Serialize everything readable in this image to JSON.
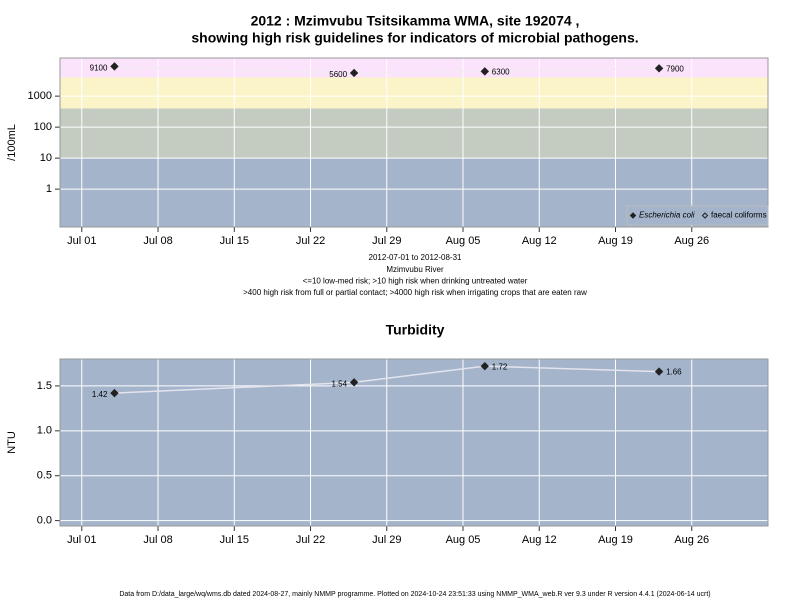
{
  "chart_data": [
    {
      "type": "line",
      "title": "2012 : Mzimvubu Tsitsikamma WMA, site 192074 ,",
      "subtitle": "showing high risk guidelines for indicators of microbial pathogens.",
      "ylabel": "/100mL",
      "annotations": [
        "2012-07-01 to 2012-08-31",
        "Mzimvubu River",
        "<=10 low-med risk; >10 high risk when drinking untreated water",
        ">400 high risk from full or partial contact; >4000 high risk when irrigating crops that are eaten raw"
      ],
      "x": [
        "2012-07-04",
        "2012-07-26",
        "2012-08-07",
        "2012-08-23"
      ],
      "series": [
        {
          "name": "Escherichia coli",
          "color": "#f4e8f4",
          "marker": "filled",
          "values": [
            9100,
            5600,
            6300,
            7900
          ]
        },
        {
          "name": "faecal coliforms",
          "color": "#f4e8f4",
          "marker": "open",
          "values": [
            null,
            null,
            null,
            null
          ]
        }
      ],
      "xlim": [
        "2012-06-29",
        "2012-09-02"
      ],
      "xticks": [
        {
          "value": "2012-07-01",
          "label": "Jul 01"
        },
        {
          "value": "2012-07-08",
          "label": "Jul 08"
        },
        {
          "value": "2012-07-15",
          "label": "Jul 15"
        },
        {
          "value": "2012-07-22",
          "label": "Jul 22"
        },
        {
          "value": "2012-07-29",
          "label": "Jul 29"
        },
        {
          "value": "2012-08-05",
          "label": "Aug 05"
        },
        {
          "value": "2012-08-12",
          "label": "Aug 12"
        },
        {
          "value": "2012-08-19",
          "label": "Aug 19"
        },
        {
          "value": "2012-08-26",
          "label": "Aug 26"
        }
      ],
      "ylim": [
        0.06,
        17000
      ],
      "yticks": [
        1,
        10,
        100,
        1000
      ],
      "log_scale": true,
      "grid": true,
      "background": "#a3b4cb",
      "band_breaks": [
        10,
        400,
        4000
      ],
      "band_colors": [
        "#a3b4cb",
        "#c4cbc0",
        "#fbf4c8",
        "#fbe3fb"
      ],
      "legend": "bottom-right"
    },
    {
      "type": "line",
      "title": "Turbidity",
      "ylabel": "NTU",
      "x": [
        "2012-07-04",
        "2012-07-26",
        "2012-08-07",
        "2012-08-23"
      ],
      "series": [
        {
          "name": "Turbidity",
          "color": "#e4e4ee",
          "marker": "filled",
          "values": [
            1.42,
            1.54,
            1.72,
            1.66
          ]
        }
      ],
      "xlim": [
        "2012-06-29",
        "2012-09-02"
      ],
      "xticks": [
        {
          "value": "2012-07-01",
          "label": "Jul 01"
        },
        {
          "value": "2012-07-08",
          "label": "Jul 08"
        },
        {
          "value": "2012-07-15",
          "label": "Jul 15"
        },
        {
          "value": "2012-07-22",
          "label": "Jul 22"
        },
        {
          "value": "2012-07-29",
          "label": "Jul 29"
        },
        {
          "value": "2012-08-05",
          "label": "Aug 05"
        },
        {
          "value": "2012-08-12",
          "label": "Aug 12"
        },
        {
          "value": "2012-08-19",
          "label": "Aug 19"
        },
        {
          "value": "2012-08-26",
          "label": "Aug 26"
        }
      ],
      "ylim": [
        -0.06,
        1.8
      ],
      "yticks": [
        {
          "value": 0,
          "label": "0.0"
        },
        {
          "value": 0.5,
          "label": "0.5"
        },
        {
          "value": 1,
          "label": "1.0"
        },
        {
          "value": 1.5,
          "label": "1.5"
        }
      ],
      "log_scale": false,
      "grid": true,
      "background": "#a3b4cb"
    }
  ],
  "footer": "Data from D:/data_large/wq/wms.db dated 2024-08-27, mainly NMMP programme. Plotted on 2024-10-24 23:51:33 using NMMP_WMA_web.R ver 9.3 under R version 4.4.1 (2024-06-14 ucrt)"
}
